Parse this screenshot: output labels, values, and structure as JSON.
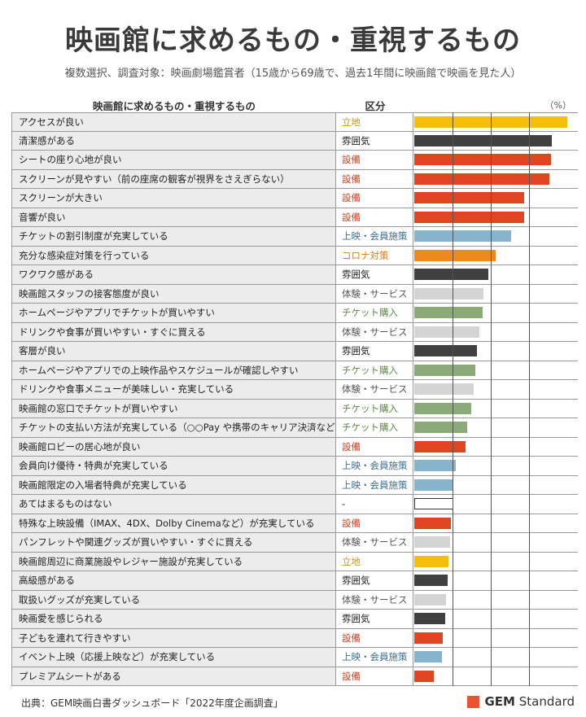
{
  "title": "映画館に求めるもの・重視するもの",
  "subtitle": "複数選択、調査対象：映画劇場鑑賞者（15歳から69歳で、過去1年間に映画館で映画を見た人）",
  "header": {
    "item": "映画館に求めるもの・重視するもの",
    "category": "区分",
    "unit": "（%）"
  },
  "footer": {
    "source": "出典：GEM映画白書ダッシュボード「2022年度企画調査」",
    "logo_bold": "GEM",
    "logo_rest": " Standard"
  },
  "category_colors": {
    "立地": "#f5be0a",
    "雰囲気": "#404040",
    "設備": "#e04420",
    "上映・会員施策": "#86b4cc",
    "コロナ対策": "#ee8a1c",
    "体験・サービス": "#d4d4d4",
    "チケット購入": "#8aaa78",
    "-": "#ffffff"
  },
  "category_text_colors": {
    "立地": "#c9960a",
    "雰囲気": "#222222",
    "設備": "#d43d1e",
    "上映・会員施策": "#3d6f8e",
    "コロナ対策": "#e07a10",
    "体験・サービス": "#555555",
    "チケット購入": "#5d8a44",
    "-": "#222222"
  },
  "chart_data": {
    "type": "bar",
    "orientation": "horizontal",
    "title": "映画館に求めるもの・重視するもの",
    "xlim": [
      0,
      40
    ],
    "grid_step": 10,
    "categories": [
      "アクセスが良い",
      "清潔感がある",
      "シートの座り心地が良い",
      "スクリーンが見やすい（前の座席の観客が視界をさえぎらない）",
      "スクリーンが大きい",
      "音響が良い",
      "チケットの割引制度が充実している",
      "充分な感染症対策を行っている",
      "ワクワク感がある",
      "映画館スタッフの接客態度が良い",
      "ホームページやアプリでチケットが買いやすい",
      "ドリンクや食事が買いやすい・すぐに買える",
      "客層が良い",
      "ホームページやアプリでの上映作品やスケジュールが確認しやすい",
      "ドリンクや食事メニューが美味しい・充実している",
      "映画館の窓口でチケットが買いやすい",
      "チケットの支払い方法が充実している（○○Pay や携帯のキャリア決済など）",
      "映画館ロビーの居心地が良い",
      "会員向け優待・特典が充実している",
      "映画館限定の入場者特典が充実している",
      "あてはまるものはない",
      "特殊な上映設備（IMAX、4DX、Dolby Cinemaなど）が充実している",
      "パンフレットや関連グッズが買いやすい・すぐに買える",
      "映画館周辺に商業施設やレジャー施設が充実している",
      "高級感がある",
      "取扱いグッズが充実している",
      "映画愛を感じられる",
      "子どもを連れて行きやすい",
      "イベント上映（応援上映など）が充実している",
      "プレミアムシートがある"
    ],
    "groups": [
      "立地",
      "雰囲気",
      "設備",
      "設備",
      "設備",
      "設備",
      "上映・会員施策",
      "コロナ対策",
      "雰囲気",
      "体験・サービス",
      "チケット購入",
      "体験・サービス",
      "雰囲気",
      "チケット購入",
      "体験・サービス",
      "チケット購入",
      "チケット購入",
      "設備",
      "上映・会員施策",
      "上映・会員施策",
      "-",
      "設備",
      "体験・サービス",
      "立地",
      "雰囲気",
      "体験・サービス",
      "雰囲気",
      "設備",
      "上映・会員施策",
      "設備"
    ],
    "values": [
      40.0,
      35.9,
      35.8,
      35.4,
      28.8,
      28.8,
      25.4,
      21.3,
      19.4,
      18.0,
      17.8,
      17.1,
      16.3,
      15.9,
      15.6,
      14.8,
      13.9,
      13.5,
      10.9,
      10.3,
      10.2,
      9.6,
      9.4,
      9.0,
      8.8,
      8.2,
      8.0,
      7.4,
      7.2,
      5.0
    ]
  }
}
